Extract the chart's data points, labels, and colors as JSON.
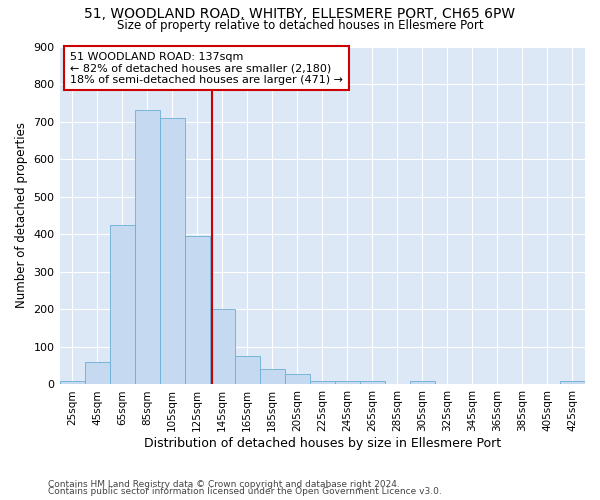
{
  "title1": "51, WOODLAND ROAD, WHITBY, ELLESMERE PORT, CH65 6PW",
  "title2": "Size of property relative to detached houses in Ellesmere Port",
  "xlabel": "Distribution of detached houses by size in Ellesmere Port",
  "ylabel": "Number of detached properties",
  "footnote1": "Contains HM Land Registry data © Crown copyright and database right 2024.",
  "footnote2": "Contains public sector information licensed under the Open Government Licence v3.0.",
  "annotation_line1": "51 WOODLAND ROAD: 137sqm",
  "annotation_line2": "← 82% of detached houses are smaller (2,180)",
  "annotation_line3": "18% of semi-detached houses are larger (471) →",
  "bar_edges": [
    15,
    35,
    55,
    75,
    95,
    115,
    135,
    155,
    175,
    195,
    215,
    235,
    255,
    275,
    295,
    315,
    335,
    355,
    375,
    395,
    415,
    435
  ],
  "bar_heights": [
    10,
    60,
    425,
    730,
    710,
    395,
    200,
    75,
    40,
    28,
    10,
    10,
    10,
    0,
    8,
    0,
    0,
    0,
    0,
    0,
    8
  ],
  "bar_color": "#c5d9f0",
  "bar_edge_color": "#6baed6",
  "vline_color": "#cc0000",
  "vline_x": 137,
  "annotation_box_facecolor": "#ffffff",
  "annotation_box_edgecolor": "#cc0000",
  "background_color": "#dce8f5",
  "ylim": [
    0,
    900
  ],
  "yticks": [
    0,
    100,
    200,
    300,
    400,
    500,
    600,
    700,
    800,
    900
  ],
  "x_tick_labels": [
    "25sqm",
    "45sqm",
    "65sqm",
    "85sqm",
    "105sqm",
    "125sqm",
    "145sqm",
    "165sqm",
    "185sqm",
    "205sqm",
    "225sqm",
    "245sqm",
    "265sqm",
    "285sqm",
    "305sqm",
    "325sqm",
    "345sqm",
    "365sqm",
    "385sqm",
    "405sqm",
    "425sqm"
  ],
  "x_tick_positions": [
    25,
    45,
    65,
    85,
    105,
    125,
    145,
    165,
    185,
    205,
    225,
    245,
    265,
    285,
    305,
    325,
    345,
    365,
    385,
    405,
    425
  ],
  "xlim": [
    15,
    435
  ]
}
